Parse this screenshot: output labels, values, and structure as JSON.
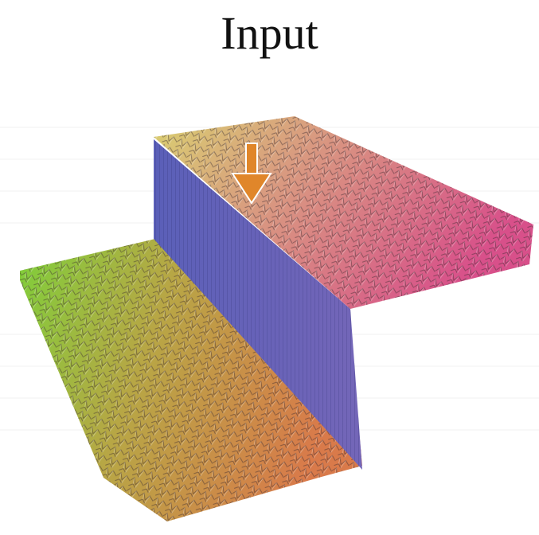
{
  "title": "Input"
}
